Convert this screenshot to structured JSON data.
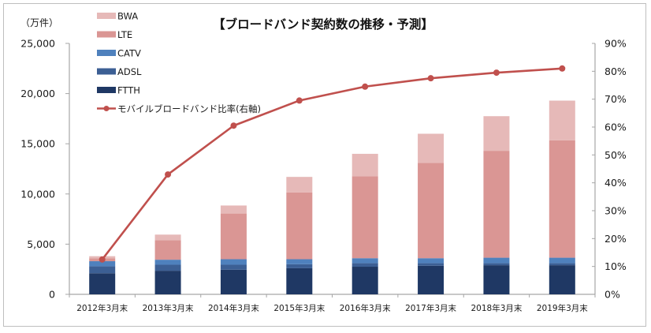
{
  "chart_data": {
    "type": "bar",
    "title": "【ブロードバンド契約数の推移・予測】",
    "unit_label": "（万件）",
    "categories": [
      "2012年3月末",
      "2013年3月末",
      "2014年3月末",
      "2015年3月末",
      "2016年3月末",
      "2017年3月末",
      "2018年3月末",
      "2019年3月末"
    ],
    "series": [
      {
        "name": "FTTH",
        "kind": "bar",
        "axis": "left",
        "color": "#1f3864",
        "values": [
          2100,
          2350,
          2450,
          2600,
          2750,
          2850,
          2900,
          2900
        ]
      },
      {
        "name": "ADSL",
        "kind": "bar",
        "axis": "left",
        "color": "#3c5f94",
        "values": [
          700,
          600,
          500,
          400,
          350,
          250,
          200,
          200
        ]
      },
      {
        "name": "CATV",
        "kind": "bar",
        "axis": "left",
        "color": "#4f81bd",
        "values": [
          500,
          500,
          550,
          500,
          500,
          500,
          550,
          550
        ]
      },
      {
        "name": "LTE",
        "kind": "bar",
        "axis": "left",
        "color": "#da9694",
        "values": [
          300,
          1950,
          4550,
          6650,
          8150,
          9500,
          10650,
          11700
        ]
      },
      {
        "name": "BWA",
        "kind": "bar",
        "axis": "left",
        "color": "#e6b9b8",
        "values": [
          200,
          550,
          800,
          1550,
          2250,
          2900,
          3450,
          3950
        ]
      },
      {
        "name": "モバイルブロードバンド比率(右軸)",
        "kind": "line",
        "axis": "right",
        "color": "#c0504d",
        "values": [
          12.5,
          43,
          60.5,
          69.5,
          74.5,
          77.5,
          79.5,
          81
        ]
      }
    ],
    "legend_order": [
      "BWA",
      "LTE",
      "CATV",
      "ADSL",
      "FTTH",
      "モバイルブロードバンド比率(右軸)"
    ],
    "legend_placement": "top-left",
    "y_left": {
      "ylim": [
        0,
        25000
      ],
      "ticks": [
        "0",
        "5,000",
        "10,000",
        "15,000",
        "20,000",
        "25,000"
      ],
      "tick_values": [
        0,
        5000,
        10000,
        15000,
        20000,
        25000
      ]
    },
    "y_right": {
      "ylim": [
        0,
        90
      ],
      "ticks": [
        "0%",
        "10%",
        "20%",
        "30%",
        "40%",
        "50%",
        "60%",
        "70%",
        "80%",
        "90%"
      ],
      "tick_values": [
        0,
        10,
        20,
        30,
        40,
        50,
        60,
        70,
        80,
        90
      ]
    },
    "xlabel": "",
    "ylabel": "万件",
    "grid": false
  }
}
